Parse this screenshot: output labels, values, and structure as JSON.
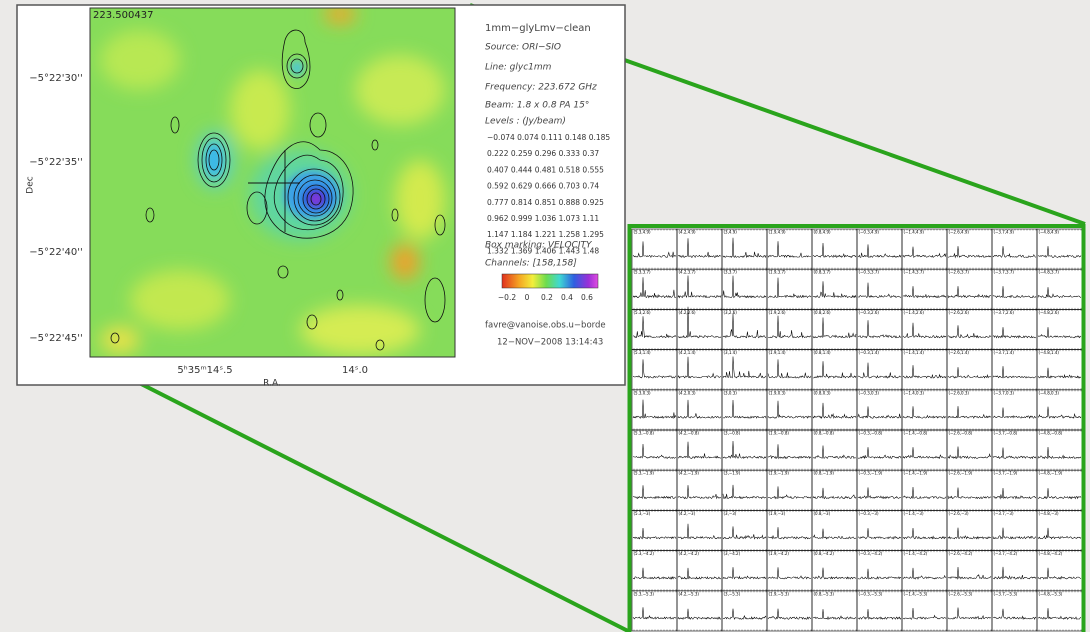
{
  "map": {
    "corner_label": "223.500437",
    "dec_label": "Dec",
    "ra_label": "R.A.",
    "dec_ticks": [
      "−5°22'30''",
      "−5°22'35''",
      "−5°22'40''",
      "−5°22'45''"
    ],
    "ra_ticks": [
      "5ʰ35ᵐ14ˢ.5",
      "14ˢ.0"
    ],
    "info": {
      "title": "1mm−glyLmv−clean",
      "source": "Source: ORI−SIO",
      "line": "Line: glyc1mm",
      "frequency": "Frequency: 223.672 GHz",
      "beam": "Beam: 1.8 x 0.8 PA 15°",
      "levels_title": "Levels : (Jy/beam)",
      "levels": [
        "−0.074 0.074 0.111 0.148 0.185",
        "0.222 0.259 0.296 0.333 0.37",
        "0.407 0.444 0.481 0.518 0.555",
        "0.592 0.629 0.666 0.703 0.74",
        "0.777 0.814 0.851 0.888 0.925",
        "0.962 0.999 1.036 1.073 1.11",
        "1.147 1.184 1.221 1.258 1.295",
        "1.332 1.369 1.406 1.443 1.48"
      ],
      "box_marking": "Box marking: VELOCITY",
      "channels": "Channels: [158,158]",
      "colorbar_ticks": [
        "−0.2",
        "0",
        "0.2",
        "0.4",
        "0.6"
      ],
      "user": "favre@vanoise.obs.u−borde",
      "date": "12−NOV−2008 13:14:43"
    }
  },
  "spectra_grid": {
    "panel_labels": [
      [
        "(5.3,4.9)",
        "(4.2,4.9)",
        "(3,4.9)",
        "(1.9,4.9)",
        "(0.8,4.9)",
        "(−0.3,4.9)",
        "(−1.4,4.9)",
        "(−2.6,4.9)",
        "(−3.7,4.9)",
        "(−4.8,4.9)"
      ],
      [
        "(5.3,3.7)",
        "(4.2,3.7)",
        "(3,3.7)",
        "(1.9,3.7)",
        "(0.8,3.7)",
        "(−0.3,3.7)",
        "(−1.4,3.7)",
        "(−2.6,3.7)",
        "(−3.7,3.7)",
        "(−4.8,3.7)"
      ],
      [
        "(5.3,2.6)",
        "(4.2,2.6)",
        "(3,2.6)",
        "(1.9,2.6)",
        "(0.8,2.6)",
        "(−0.3,2.6)",
        "(−1.4,2.6)",
        "(−2.6,2.6)",
        "(−3.7,2.6)",
        "(−4.8,2.6)"
      ],
      [
        "(5.3,1.4)",
        "(4.2,1.4)",
        "(3,1.4)",
        "(1.9,1.4)",
        "(0.8,1.4)",
        "(−0.3,1.4)",
        "(−1.4,1.4)",
        "(−2.6,1.4)",
        "(−3.7,1.4)",
        "(−4.8,1.4)"
      ],
      [
        "(5.3,0.3)",
        "(4.2,0.3)",
        "(3,0.3)",
        "(1.9,0.3)",
        "(0.8,0.3)",
        "(−0.3,0.3)",
        "(−1.4,0.3)",
        "(−2.6,0.3)",
        "(−3.7,0.3)",
        "(−4.8,0.3)"
      ],
      [
        "(5.3,−0.8)",
        "(4.2,−0.8)",
        "(3,−0.8)",
        "(1.9,−0.8)",
        "(0.8,−0.8)",
        "(−0.3,−0.8)",
        "(−1.4,−0.8)",
        "(−2.6,−0.8)",
        "(−3.7,−0.8)",
        "(−4.8,−0.8)"
      ],
      [
        "(5.3,−1.9)",
        "(4.2,−1.9)",
        "(3,−1.9)",
        "(1.9,−1.9)",
        "(0.8,−1.9)",
        "(−0.3,−1.9)",
        "(−1.4,−1.9)",
        "(−2.6,−1.9)",
        "(−3.7,−1.9)",
        "(−4.8,−1.9)"
      ],
      [
        "(5.3,−3)",
        "(4.2,−3)",
        "(3,−3)",
        "(1.9,−3)",
        "(0.8,−3)",
        "(−0.3,−3)",
        "(−1.4,−3)",
        "(−2.6,−3)",
        "(−3.7,−3)",
        "(−4.8,−3)"
      ],
      [
        "(5.3,−4.2)",
        "(4.2,−4.2)",
        "(3,−4.2)",
        "(1.9,−4.2)",
        "(0.8,−4.2)",
        "(−0.3,−4.2)",
        "(−1.4,−4.2)",
        "(−2.6,−4.2)",
        "(−3.7,−4.2)",
        "(−4.8,−4.2)"
      ],
      [
        "(5.3,−5.3)",
        "(4.2,−5.3)",
        "(3,−5.3)",
        "(1.9,−5.3)",
        "(0.8,−5.3)",
        "(−0.3,−5.3)",
        "(−1.4,−5.3)",
        "(−2.6,−5.3)",
        "(−3.7,−5.3)",
        "(−4.8,−5.3)"
      ]
    ]
  }
}
